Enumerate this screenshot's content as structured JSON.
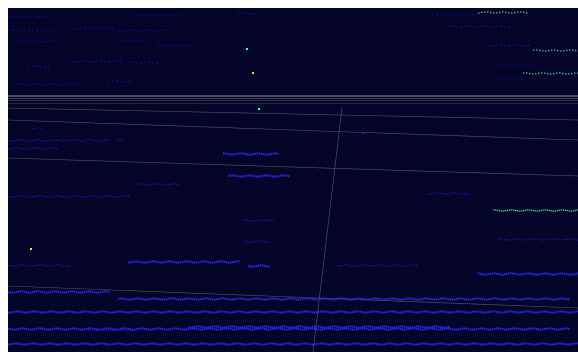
{
  "viewport": {
    "background_color": "#05052a",
    "point_color": "#1a1aff",
    "dim_point_color": "#1414c8",
    "near_point_color": "#2a2aff",
    "highlight_point_color": "#4dffb0",
    "grid_line_color": "#7a7a6a",
    "horizon_band_color": "#4a4a5a"
  }
}
